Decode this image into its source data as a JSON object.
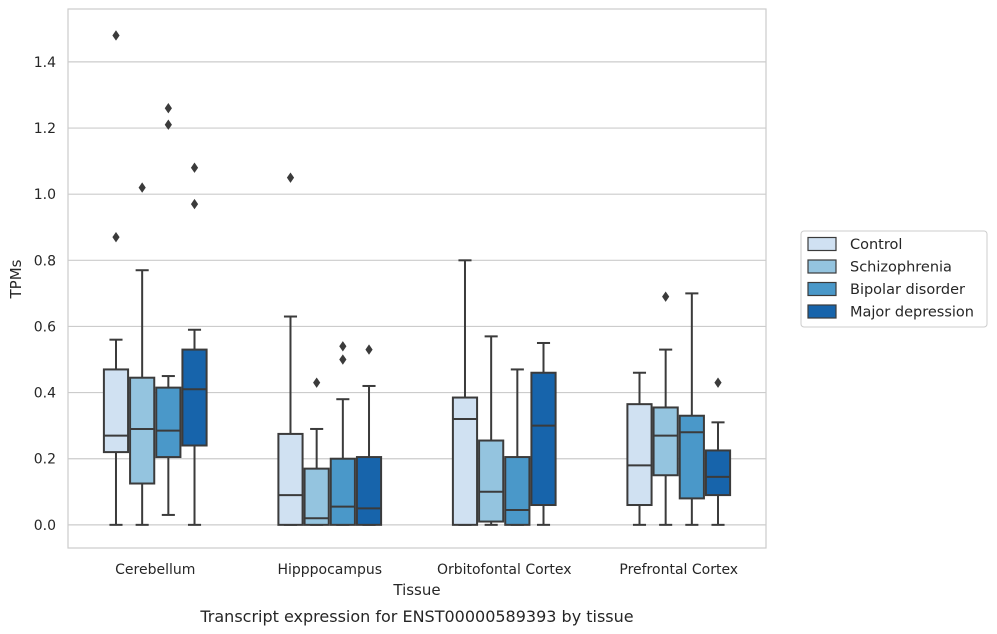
{
  "caption": "Transcript expression for ENST00000589393 by tissue",
  "chart_data": {
    "type": "box",
    "xlabel": "Tissue",
    "ylabel": "TPMs",
    "ylim": [
      -0.07,
      1.56
    ],
    "yticks": [
      0.0,
      0.2,
      0.4,
      0.6,
      0.8,
      1.0,
      1.2,
      1.4
    ],
    "ytick_labels": [
      "0.0",
      "0.2",
      "0.4",
      "0.6",
      "0.8",
      "1.0",
      "1.2",
      "1.4"
    ],
    "grid": "horizontal",
    "legend_position": "right",
    "categories": [
      "Cerebellum",
      "Hipppocampus",
      "Orbitofontal Cortex",
      "Prefrontal Cortex"
    ],
    "series": [
      {
        "name": "Control",
        "color": "#d0e1f2",
        "boxes": [
          {
            "whislo": 0.0,
            "q1": 0.22,
            "med": 0.27,
            "q3": 0.47,
            "whishi": 0.56,
            "fliers": [
              0.87,
              1.48
            ]
          },
          {
            "whislo": 0.0,
            "q1": 0.0,
            "med": 0.09,
            "q3": 0.275,
            "whishi": 0.63,
            "fliers": [
              1.05
            ]
          },
          {
            "whislo": 0.0,
            "q1": 0.0,
            "med": 0.32,
            "q3": 0.385,
            "whishi": 0.8,
            "fliers": []
          },
          {
            "whislo": 0.0,
            "q1": 0.06,
            "med": 0.18,
            "q3": 0.365,
            "whishi": 0.46,
            "fliers": []
          }
        ]
      },
      {
        "name": "Schizophrenia",
        "color": "#94c4df",
        "boxes": [
          {
            "whislo": 0.0,
            "q1": 0.125,
            "med": 0.29,
            "q3": 0.445,
            "whishi": 0.77,
            "fliers": [
              1.02
            ]
          },
          {
            "whislo": 0.0,
            "q1": 0.0,
            "med": 0.02,
            "q3": 0.17,
            "whishi": 0.29,
            "fliers": [
              0.43
            ]
          },
          {
            "whislo": 0.0,
            "q1": 0.01,
            "med": 0.1,
            "q3": 0.255,
            "whishi": 0.57,
            "fliers": []
          },
          {
            "whislo": 0.0,
            "q1": 0.15,
            "med": 0.27,
            "q3": 0.355,
            "whishi": 0.53,
            "fliers": [
              0.69
            ]
          }
        ]
      },
      {
        "name": "Bipolar disorder",
        "color": "#4a98c9",
        "boxes": [
          {
            "whislo": 0.03,
            "q1": 0.205,
            "med": 0.285,
            "q3": 0.415,
            "whishi": 0.45,
            "fliers": [
              1.21,
              1.26
            ]
          },
          {
            "whislo": 0.0,
            "q1": 0.0,
            "med": 0.055,
            "q3": 0.2,
            "whishi": 0.38,
            "fliers": [
              0.5,
              0.54
            ]
          },
          {
            "whislo": 0.0,
            "q1": 0.0,
            "med": 0.045,
            "q3": 0.205,
            "whishi": 0.47,
            "fliers": []
          },
          {
            "whislo": 0.0,
            "q1": 0.08,
            "med": 0.28,
            "q3": 0.33,
            "whishi": 0.7,
            "fliers": []
          }
        ]
      },
      {
        "name": "Major depression",
        "color": "#1764ab",
        "boxes": [
          {
            "whislo": 0.0,
            "q1": 0.24,
            "med": 0.41,
            "q3": 0.53,
            "whishi": 0.59,
            "fliers": [
              0.97,
              1.08
            ]
          },
          {
            "whislo": 0.0,
            "q1": 0.0,
            "med": 0.05,
            "q3": 0.205,
            "whishi": 0.42,
            "fliers": [
              0.53
            ]
          },
          {
            "whislo": 0.0,
            "q1": 0.06,
            "med": 0.3,
            "q3": 0.46,
            "whishi": 0.55,
            "fliers": []
          },
          {
            "whislo": 0.0,
            "q1": 0.09,
            "med": 0.145,
            "q3": 0.225,
            "whishi": 0.31,
            "fliers": [
              0.43
            ]
          }
        ]
      }
    ]
  }
}
